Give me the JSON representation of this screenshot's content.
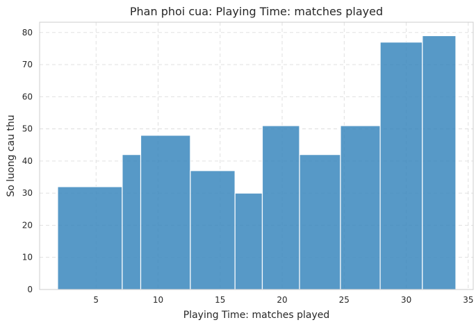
{
  "chart_data": {
    "type": "bar",
    "title": "Phan phoi cua: Playing Time: matches played",
    "xlabel": "Playing Time: matches played",
    "ylabel": "So luong cau thu",
    "histogram": true,
    "bin_edges": [
      1.9,
      7.11,
      8.6,
      12.6,
      16.2,
      18.4,
      21.4,
      24.7,
      27.9,
      31.3,
      34.0
    ],
    "values": [
      32,
      42,
      48,
      37,
      30,
      51,
      42,
      51,
      77,
      79
    ],
    "xlim": [
      0.45,
      35.4
    ],
    "ylim": [
      0,
      83.2
    ],
    "xticks": [
      5,
      10,
      15,
      20,
      25,
      30,
      35
    ],
    "yticks": [
      0,
      10,
      20,
      30,
      40,
      50,
      60,
      70,
      80
    ],
    "grid": true,
    "bar_color": "#3a87bd",
    "bar_opacity": 0.85,
    "legend": "none"
  }
}
